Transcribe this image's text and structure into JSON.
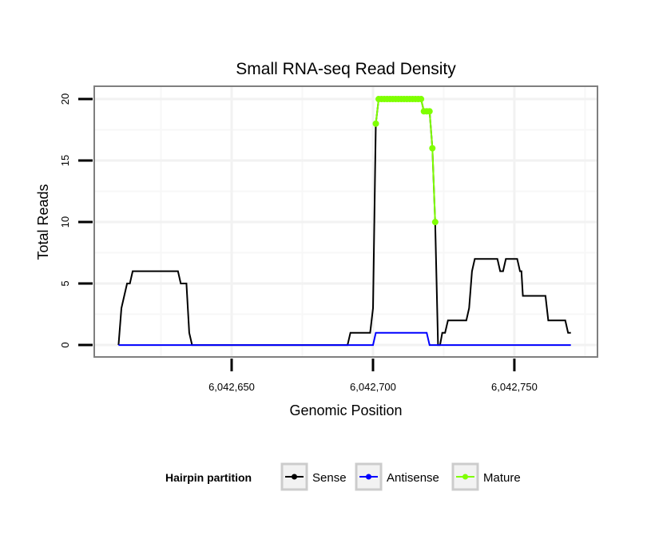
{
  "chart_data": {
    "type": "line",
    "title": "Small RNA-seq Read Density",
    "xlabel": "Genomic Position",
    "ylabel": "Total Reads",
    "xlim": [
      6042601.4,
      6042779.4
    ],
    "ylim": [
      -0.97,
      21.04
    ],
    "x_ticks": [
      6042650,
      6042700,
      6042750
    ],
    "x_tick_labels": [
      "6,042,650",
      "6,042,700",
      "6,042,750"
    ],
    "y_ticks": [
      0,
      5,
      10,
      15,
      20
    ],
    "y_tick_labels": [
      "0",
      "5",
      "10",
      "15",
      "20"
    ],
    "grid": true,
    "legend": {
      "title": "Hairpin partition",
      "placement": "bottom"
    },
    "series": [
      {
        "name": "Sense",
        "color": "#000000",
        "points": [
          [
            6042610,
            0
          ],
          [
            6042611,
            3
          ],
          [
            6042613,
            5
          ],
          [
            6042614,
            5
          ],
          [
            6042615,
            6
          ],
          [
            6042631,
            6
          ],
          [
            6042632,
            5
          ],
          [
            6042634,
            5
          ],
          [
            6042635,
            1
          ],
          [
            6042636,
            0
          ],
          [
            6042691,
            0
          ],
          [
            6042692,
            1
          ],
          [
            6042699,
            1
          ],
          [
            6042700,
            3
          ],
          [
            6042701,
            18
          ],
          [
            6042702,
            20
          ],
          [
            6042717,
            20
          ],
          [
            6042718,
            19
          ],
          [
            6042720,
            19
          ],
          [
            6042721,
            16
          ],
          [
            6042722,
            10
          ],
          [
            6042723,
            0
          ],
          [
            6042723.7,
            0
          ],
          [
            6042724.5,
            1
          ],
          [
            6042725.5,
            1
          ],
          [
            6042726.5,
            2
          ],
          [
            6042733,
            2
          ],
          [
            6042734,
            3
          ],
          [
            6042735,
            6
          ],
          [
            6042736,
            7
          ],
          [
            6042744,
            7
          ],
          [
            6042745,
            6
          ],
          [
            6042746,
            6
          ],
          [
            6042747,
            7
          ],
          [
            6042751,
            7
          ],
          [
            6042752,
            6
          ],
          [
            6042752.5,
            6
          ],
          [
            6042753,
            4
          ],
          [
            6042761,
            4
          ],
          [
            6042762,
            2
          ],
          [
            6042768,
            2
          ],
          [
            6042769,
            1
          ],
          [
            6042770,
            1
          ]
        ]
      },
      {
        "name": "Antisense",
        "color": "#0000ff",
        "points": [
          [
            6042610,
            0
          ],
          [
            6042700,
            0
          ],
          [
            6042701,
            1
          ],
          [
            6042719,
            1
          ],
          [
            6042720,
            0
          ],
          [
            6042770,
            0
          ]
        ]
      },
      {
        "name": "Mature",
        "color": "#7fff00",
        "markers": true,
        "points": [
          [
            6042701,
            18
          ],
          [
            6042702,
            20
          ],
          [
            6042703,
            20
          ],
          [
            6042704,
            20
          ],
          [
            6042705,
            20
          ],
          [
            6042706,
            20
          ],
          [
            6042707,
            20
          ],
          [
            6042708,
            20
          ],
          [
            6042709,
            20
          ],
          [
            6042710,
            20
          ],
          [
            6042711,
            20
          ],
          [
            6042712,
            20
          ],
          [
            6042713,
            20
          ],
          [
            6042714,
            20
          ],
          [
            6042715,
            20
          ],
          [
            6042716,
            20
          ],
          [
            6042717,
            20
          ],
          [
            6042718,
            19
          ],
          [
            6042719,
            19
          ],
          [
            6042720,
            19
          ],
          [
            6042721,
            16
          ],
          [
            6042722,
            10
          ]
        ]
      }
    ]
  }
}
